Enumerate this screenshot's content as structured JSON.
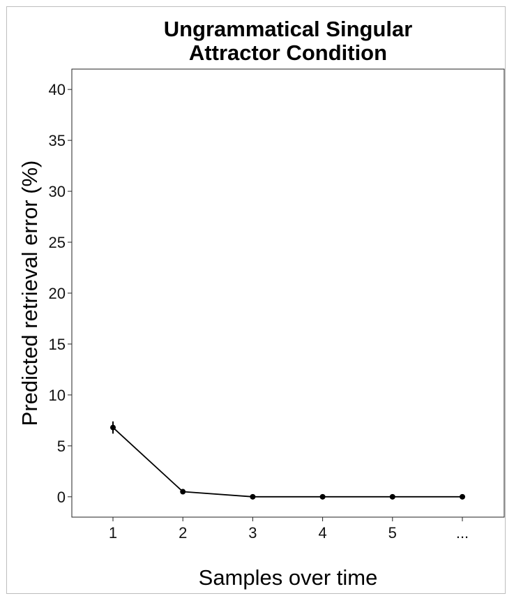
{
  "chart_data": {
    "type": "line",
    "title": [
      "Ungrammatical Singular",
      "Attractor Condition"
    ],
    "xlabel": "Samples over time",
    "ylabel": "Predicted retrieval error (%)",
    "categories": [
      "1",
      "2",
      "3",
      "4",
      "5",
      "..."
    ],
    "values": [
      6.8,
      0.5,
      0.0,
      0.0,
      0.0,
      0.0
    ],
    "error_bars": [
      0.6,
      0.0,
      0.0,
      0.0,
      0.0,
      0.0
    ],
    "yticks": [
      0,
      5,
      10,
      15,
      20,
      25,
      30,
      35,
      40
    ],
    "ylim": [
      -2,
      42
    ],
    "grid": false,
    "colors": {
      "line": "#000000",
      "points": "#000000"
    }
  }
}
